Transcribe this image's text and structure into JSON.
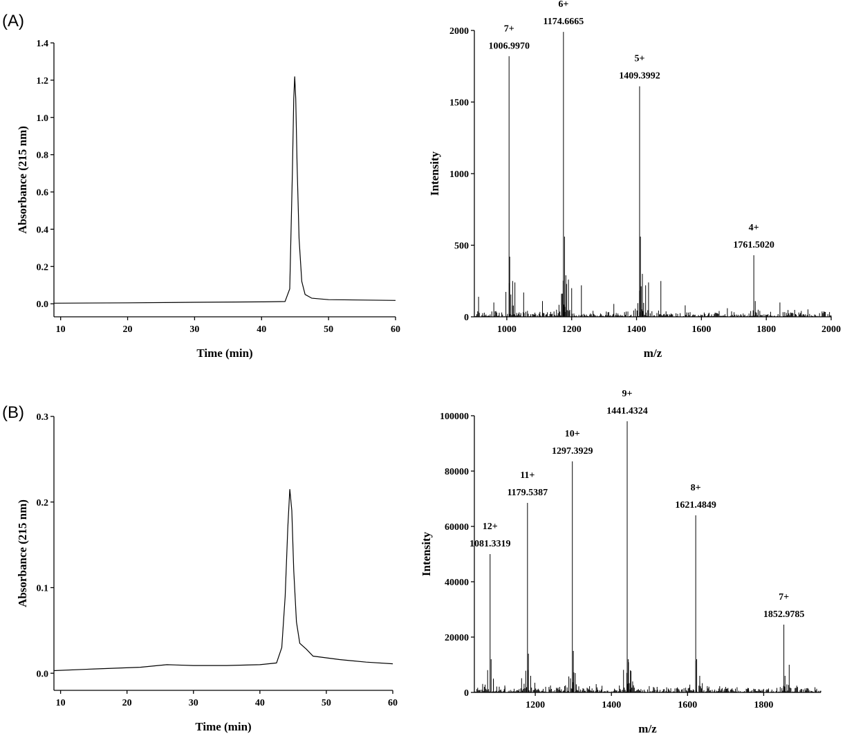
{
  "panels": [
    {
      "label": "(A)"
    },
    {
      "label": "(B)"
    }
  ],
  "chart_data": [
    {
      "type": "line",
      "panel": "(A)",
      "xlabel": "Time (min)",
      "ylabel": "Absorbance (215 nm)",
      "xlim": [
        9,
        60
      ],
      "ylim": [
        -0.07,
        1.4
      ],
      "xticks": [
        10,
        20,
        30,
        40,
        50,
        60
      ],
      "yticks": [
        0.0,
        0.2,
        0.4,
        0.6,
        0.8,
        1.0,
        1.2,
        1.4
      ],
      "ytick_labels": [
        "0.0",
        "0.2",
        "0.4",
        "0.6",
        "0.8",
        "1.0",
        "1.2",
        "1.4"
      ],
      "x": [
        9,
        20,
        30,
        40,
        43.5,
        44.2,
        44.6,
        44.8,
        44.95,
        45.1,
        45.3,
        45.6,
        46.0,
        46.5,
        47.5,
        50,
        60
      ],
      "y": [
        0.003,
        0.005,
        0.008,
        0.01,
        0.012,
        0.08,
        0.7,
        1.1,
        1.22,
        1.1,
        0.75,
        0.35,
        0.12,
        0.05,
        0.03,
        0.022,
        0.018
      ]
    },
    {
      "type": "bar",
      "panel": "(A)",
      "xlabel": "m/z",
      "ylabel": "Intensity",
      "xlim": [
        900,
        2000
      ],
      "ylim": [
        0,
        2000
      ],
      "xticks": [
        1000,
        1200,
        1400,
        1600,
        1800,
        2000
      ],
      "yticks": [
        0,
        500,
        1000,
        1500,
        2000
      ],
      "peaks": [
        {
          "mz": 1006.997,
          "intensity": 1820,
          "charge": "7+",
          "mz_label": "1006.9970"
        },
        {
          "mz": 1174.6665,
          "intensity": 1990,
          "charge": "6+",
          "mz_label": "1174.6665"
        },
        {
          "mz": 1409.3992,
          "intensity": 1610,
          "charge": "5+",
          "mz_label": "1409.3992"
        },
        {
          "mz": 1761.502,
          "intensity": 430,
          "charge": "4+",
          "mz_label": "1761.5020"
        }
      ],
      "minor_peaks": [
        [
          1009,
          420
        ],
        [
          1018,
          250
        ],
        [
          1025,
          240
        ],
        [
          1052,
          170
        ],
        [
          1178,
          560
        ],
        [
          1182,
          290
        ],
        [
          1190,
          260
        ],
        [
          1200,
          200
        ],
        [
          1230,
          220
        ],
        [
          1412,
          560
        ],
        [
          1418,
          300
        ],
        [
          1428,
          220
        ],
        [
          1437,
          240
        ],
        [
          1475,
          250
        ],
        [
          1766,
          110
        ],
        [
          1842,
          100
        ],
        [
          913,
          140
        ],
        [
          960,
          100
        ],
        [
          1110,
          110
        ],
        [
          1330,
          90
        ],
        [
          1550,
          80
        ],
        [
          1680,
          60
        ]
      ]
    },
    {
      "type": "line",
      "panel": "(B)",
      "xlabel": "Time (min)",
      "ylabel": "Absorbance (215 nm)",
      "xlim": [
        9,
        60
      ],
      "ylim": [
        -0.02,
        0.3
      ],
      "xticks": [
        10,
        20,
        30,
        40,
        50,
        60
      ],
      "yticks": [
        0.0,
        0.1,
        0.2,
        0.3
      ],
      "ytick_labels": [
        "0.0",
        "0.1",
        "0.2",
        "0.3"
      ],
      "x": [
        9,
        15,
        22,
        26,
        30,
        35,
        40,
        42.5,
        43.3,
        43.8,
        44.2,
        44.5,
        44.8,
        45.1,
        45.5,
        46.0,
        47.0,
        48.0,
        52,
        56,
        60
      ],
      "y": [
        0.003,
        0.005,
        0.007,
        0.01,
        0.009,
        0.009,
        0.01,
        0.012,
        0.03,
        0.09,
        0.17,
        0.215,
        0.19,
        0.12,
        0.06,
        0.035,
        0.028,
        0.02,
        0.016,
        0.013,
        0.011
      ]
    },
    {
      "type": "bar",
      "panel": "(B)",
      "xlabel": "m/z",
      "ylabel": "Intensity",
      "xlim": [
        1040,
        1950
      ],
      "ylim": [
        0,
        100000
      ],
      "xticks": [
        1200,
        1400,
        1600,
        1800
      ],
      "yticks": [
        0,
        20000,
        40000,
        60000,
        80000,
        100000
      ],
      "peaks": [
        {
          "mz": 1081.3319,
          "intensity": 50000,
          "charge": "12+",
          "mz_label": "1081.3319"
        },
        {
          "mz": 1179.5387,
          "intensity": 68500,
          "charge": "11+",
          "mz_label": "1179.5387"
        },
        {
          "mz": 1297.3929,
          "intensity": 83500,
          "charge": "10+",
          "mz_label": "1297.3929"
        },
        {
          "mz": 1441.4324,
          "intensity": 98000,
          "charge": "9+",
          "mz_label": "1441.4324"
        },
        {
          "mz": 1621.4849,
          "intensity": 64000,
          "charge": "8+",
          "mz_label": "1621.4849"
        },
        {
          "mz": 1852.9785,
          "intensity": 24500,
          "charge": "7+",
          "mz_label": "1852.9785"
        }
      ],
      "minor_peaks": [
        [
          1084,
          12000
        ],
        [
          1090,
          5000
        ],
        [
          1182,
          14000
        ],
        [
          1188,
          6000
        ],
        [
          1300,
          15000
        ],
        [
          1305,
          7000
        ],
        [
          1444,
          12000
        ],
        [
          1450,
          8000
        ],
        [
          1624,
          12000
        ],
        [
          1632,
          6000
        ],
        [
          1856,
          6000
        ],
        [
          1867,
          10000
        ],
        [
          1120,
          2500
        ],
        [
          1240,
          2500
        ],
        [
          1360,
          3000
        ],
        [
          1520,
          2000
        ],
        [
          1700,
          2000
        ],
        [
          1760,
          1500
        ],
        [
          1900,
          1200
        ]
      ]
    }
  ]
}
